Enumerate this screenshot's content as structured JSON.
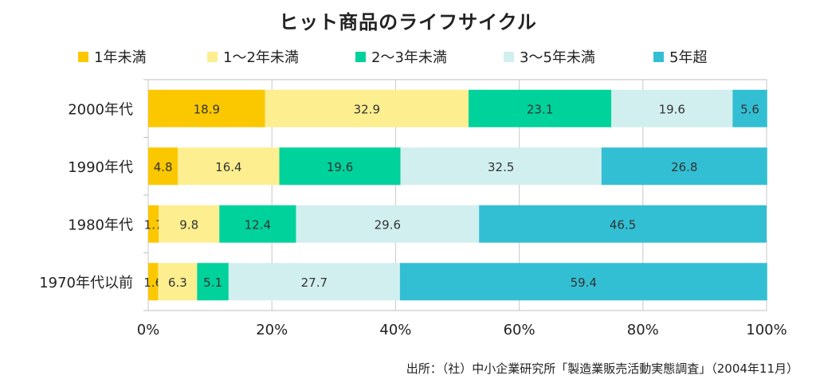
{
  "chart_data": {
    "type": "bar",
    "orientation": "horizontal",
    "stacked": true,
    "title": "ヒット商品のライフサイクル",
    "categories": [
      "2000年代",
      "1990年代",
      "1980年代",
      "1970年代以前"
    ],
    "series": [
      {
        "name": "1年未満",
        "color": "#fbc800",
        "values": [
          18.9,
          4.8,
          1.7,
          1.6
        ]
      },
      {
        "name": "1～2年未満",
        "color": "#fdee8f",
        "values": [
          32.9,
          16.4,
          9.8,
          6.3
        ]
      },
      {
        "name": "2～3年未満",
        "color": "#00d29b",
        "values": [
          23.1,
          19.6,
          12.4,
          5.1
        ]
      },
      {
        "name": "3～5年未満",
        "color": "#d2efef",
        "values": [
          19.6,
          32.5,
          29.6,
          27.7
        ]
      },
      {
        "name": "5年超",
        "color": "#33bfd3",
        "values": [
          5.6,
          26.8,
          46.5,
          59.4
        ]
      }
    ],
    "xlim": [
      0,
      100
    ],
    "xticks": [
      "0%",
      "20%",
      "40%",
      "60%",
      "80%",
      "100%"
    ],
    "grid": "vertical",
    "legend_position": "top",
    "source": "出所：（社）中小企業研究所「製造業販売活動実態調査」（2004年11月）"
  }
}
